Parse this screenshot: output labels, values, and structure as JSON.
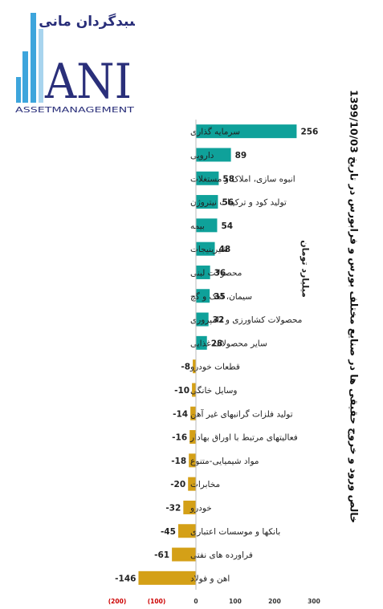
{
  "logo": {
    "title": "سبدگردان مانی",
    "letters": "ANI",
    "subtitle": "ASSETMANAGEMENT"
  },
  "colors": {
    "positive": "#0fa19a",
    "negative": "#d4a017",
    "negative_tick": "#cc0000"
  },
  "chart_data": {
    "type": "bar",
    "orientation": "horizontal",
    "title": "خالص ورود و خروج حقیقی ها در صنایع مختلف بورس و فرابورس در تاریخ 1399/10/03",
    "ylabel": "میلیارد تومان",
    "xlim": [
      -200,
      300
    ],
    "xticks": [
      "(200)",
      "(100)",
      "0",
      "100",
      "200",
      "300"
    ],
    "grid": false,
    "legend": "none",
    "categories": [
      "سرمایه گذاری",
      "دارویی",
      "انبوه سازی، املاک و مستغلات",
      "تولید کود و ترکیبات نیتروژن",
      "بیمه",
      "شیرینیجات",
      "محصولات لبنی",
      "سیمان، اهک و گچ",
      "محصولات کشاورزی و دامپروری",
      "سایر محصولات غذایی",
      "قطعات خودرو",
      "وسایل خانگی",
      "تولید فلزات گرانبهای غیر آهن",
      "فعالیتهای مرتبط با اوراق بهادار",
      "مواد شیمیایی-متنوع",
      "مخابرات",
      "خودرو",
      "بانکها و موسسات اعتباری",
      "فراورده های نفتی",
      "اهن و فولاد"
    ],
    "values": [
      256,
      89,
      58,
      56,
      54,
      48,
      36,
      35,
      32,
      28,
      -8,
      -10,
      -14,
      -16,
      -18,
      -20,
      -32,
      -45,
      -61,
      -146
    ]
  }
}
